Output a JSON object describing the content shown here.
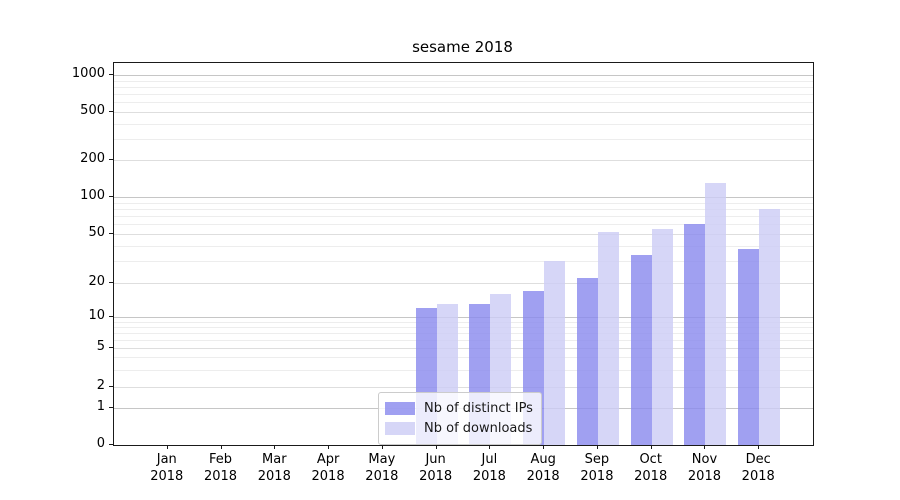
{
  "title": "sesame 2018",
  "chart_data": {
    "type": "bar",
    "title": "sesame 2018",
    "xlabel": "",
    "ylabel": "",
    "y_scale": "log (symlog, 0 at baseline)",
    "y_ticks": [
      0,
      1,
      2,
      5,
      10,
      20,
      50,
      100,
      200,
      500,
      1000
    ],
    "grid": "on",
    "legend_position": "lower center",
    "categories": [
      "Jan 2018",
      "Feb 2018",
      "Mar 2018",
      "Apr 2018",
      "May 2018",
      "Jun 2018",
      "Jul 2018",
      "Aug 2018",
      "Sep 2018",
      "Oct 2018",
      "Nov 2018",
      "Dec 2018"
    ],
    "months": [
      "Jan",
      "Feb",
      "Mar",
      "Apr",
      "May",
      "Jun",
      "Jul",
      "Aug",
      "Sep",
      "Oct",
      "Nov",
      "Dec"
    ],
    "year": "2018",
    "series": [
      {
        "name": "Nb of distinct IPs",
        "color": "#8888ee",
        "alpha": 0.8,
        "values": [
          0,
          0,
          0,
          0,
          0,
          12,
          13,
          17,
          22,
          34,
          60,
          38
        ]
      },
      {
        "name": "Nb of downloads",
        "color": "#ccccf5",
        "alpha": 0.8,
        "values": [
          0,
          0,
          0,
          0,
          0,
          13,
          16,
          30,
          52,
          55,
          130,
          80
        ]
      }
    ]
  },
  "legend": {
    "items": [
      {
        "label": "Nb of distinct IPs",
        "color": "#8888ee"
      },
      {
        "label": "Nb of downloads",
        "color": "#ccccf5"
      }
    ]
  },
  "colors": {
    "bar_dark": "#8888ee",
    "bar_light": "#ccccf5",
    "grid_decade": "#c6c6c6",
    "grid_labeled": "#dedede",
    "grid_minor": "#ededed",
    "spine": "#1a1a1a",
    "background": "#ffffff"
  }
}
